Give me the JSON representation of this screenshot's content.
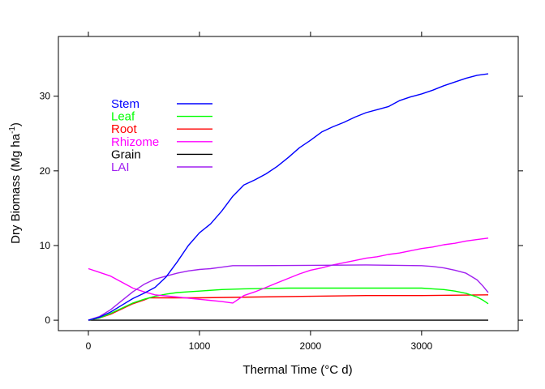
{
  "chart_data": {
    "type": "line",
    "title": "",
    "xlabel": "Thermal Time (°C d)",
    "ylabel": "Dry Biomass (Mg ha",
    "ylabel_exponent": "-1",
    "ylabel_suffix": ")",
    "xlim": [
      -270,
      3870
    ],
    "ylim": [
      -1.4,
      38.0
    ],
    "xticks": [
      0,
      1000,
      2000,
      3000
    ],
    "yticks": [
      0,
      10,
      20,
      30
    ],
    "grid": false,
    "legend_position": "top-left",
    "series": [
      {
        "name": "Stem",
        "color": "#0000ff",
        "x": [
          0,
          100,
          200,
          300,
          400,
          500,
          600,
          700,
          800,
          900,
          1000,
          1100,
          1200,
          1300,
          1400,
          1500,
          1600,
          1700,
          1800,
          1900,
          2000,
          2100,
          2200,
          2300,
          2400,
          2500,
          2600,
          2700,
          2800,
          2900,
          3000,
          3100,
          3200,
          3300,
          3400,
          3500,
          3600
        ],
        "y": [
          0,
          0.4,
          1.1,
          2.0,
          2.9,
          3.6,
          4.4,
          5.8,
          7.8,
          10.0,
          11.7,
          12.9,
          14.6,
          16.6,
          18.1,
          18.8,
          19.6,
          20.6,
          21.8,
          23.1,
          24.1,
          25.2,
          25.9,
          26.5,
          27.2,
          27.8,
          28.2,
          28.6,
          29.4,
          29.9,
          30.3,
          30.8,
          31.4,
          31.9,
          32.4,
          32.8,
          33.0
        ]
      },
      {
        "name": "Leaf",
        "color": "#00ff00",
        "x": [
          0,
          100,
          200,
          300,
          400,
          500,
          600,
          700,
          800,
          900,
          1000,
          1200,
          1400,
          1600,
          1800,
          2000,
          2200,
          2400,
          2600,
          2800,
          3000,
          3100,
          3200,
          3300,
          3400,
          3500,
          3550,
          3600
        ],
        "y": [
          0,
          0.3,
          0.9,
          1.6,
          2.3,
          2.8,
          3.2,
          3.5,
          3.7,
          3.8,
          3.9,
          4.1,
          4.2,
          4.25,
          4.3,
          4.3,
          4.3,
          4.3,
          4.3,
          4.3,
          4.3,
          4.2,
          4.1,
          3.9,
          3.6,
          3.1,
          2.7,
          2.2
        ]
      },
      {
        "name": "Root",
        "color": "#ff0000",
        "x": [
          0,
          100,
          200,
          300,
          400,
          500,
          550,
          700,
          1000,
          1500,
          2000,
          2500,
          3000,
          3600
        ],
        "y": [
          0,
          0.3,
          0.8,
          1.5,
          2.2,
          2.7,
          3.0,
          3.0,
          3.0,
          3.1,
          3.2,
          3.3,
          3.3,
          3.4
        ]
      },
      {
        "name": "Rhizome",
        "color": "#ff00ff",
        "x": [
          0,
          100,
          200,
          300,
          400,
          500,
          600,
          800,
          1000,
          1200,
          1300,
          1400,
          1500,
          1600,
          1700,
          1800,
          1900,
          2000,
          2100,
          2200,
          2300,
          2400,
          2500,
          2600,
          2700,
          2800,
          2900,
          3000,
          3100,
          3200,
          3300,
          3400,
          3500,
          3600
        ],
        "y": [
          6.9,
          6.4,
          5.9,
          5.1,
          4.3,
          3.8,
          3.4,
          3.1,
          2.8,
          2.5,
          2.3,
          3.3,
          3.8,
          4.4,
          5.0,
          5.6,
          6.2,
          6.7,
          7.0,
          7.4,
          7.7,
          8.0,
          8.3,
          8.5,
          8.8,
          9.0,
          9.3,
          9.6,
          9.8,
          10.1,
          10.3,
          10.6,
          10.8,
          11.0
        ]
      },
      {
        "name": "Grain",
        "color": "#000000",
        "x": [
          0,
          3600
        ],
        "y": [
          0,
          0
        ]
      },
      {
        "name": "LAI",
        "color": "#a020f0",
        "x": [
          0,
          100,
          200,
          300,
          400,
          500,
          600,
          700,
          800,
          900,
          1000,
          1100,
          1200,
          1300,
          1500,
          2000,
          2500,
          3000,
          3100,
          3200,
          3300,
          3400,
          3500,
          3550,
          3600
        ],
        "y": [
          0,
          0.5,
          1.4,
          2.6,
          3.8,
          4.8,
          5.5,
          5.9,
          6.3,
          6.6,
          6.8,
          6.9,
          7.1,
          7.3,
          7.3,
          7.35,
          7.4,
          7.3,
          7.2,
          7.0,
          6.7,
          6.3,
          5.4,
          4.6,
          3.7
        ]
      }
    ]
  }
}
